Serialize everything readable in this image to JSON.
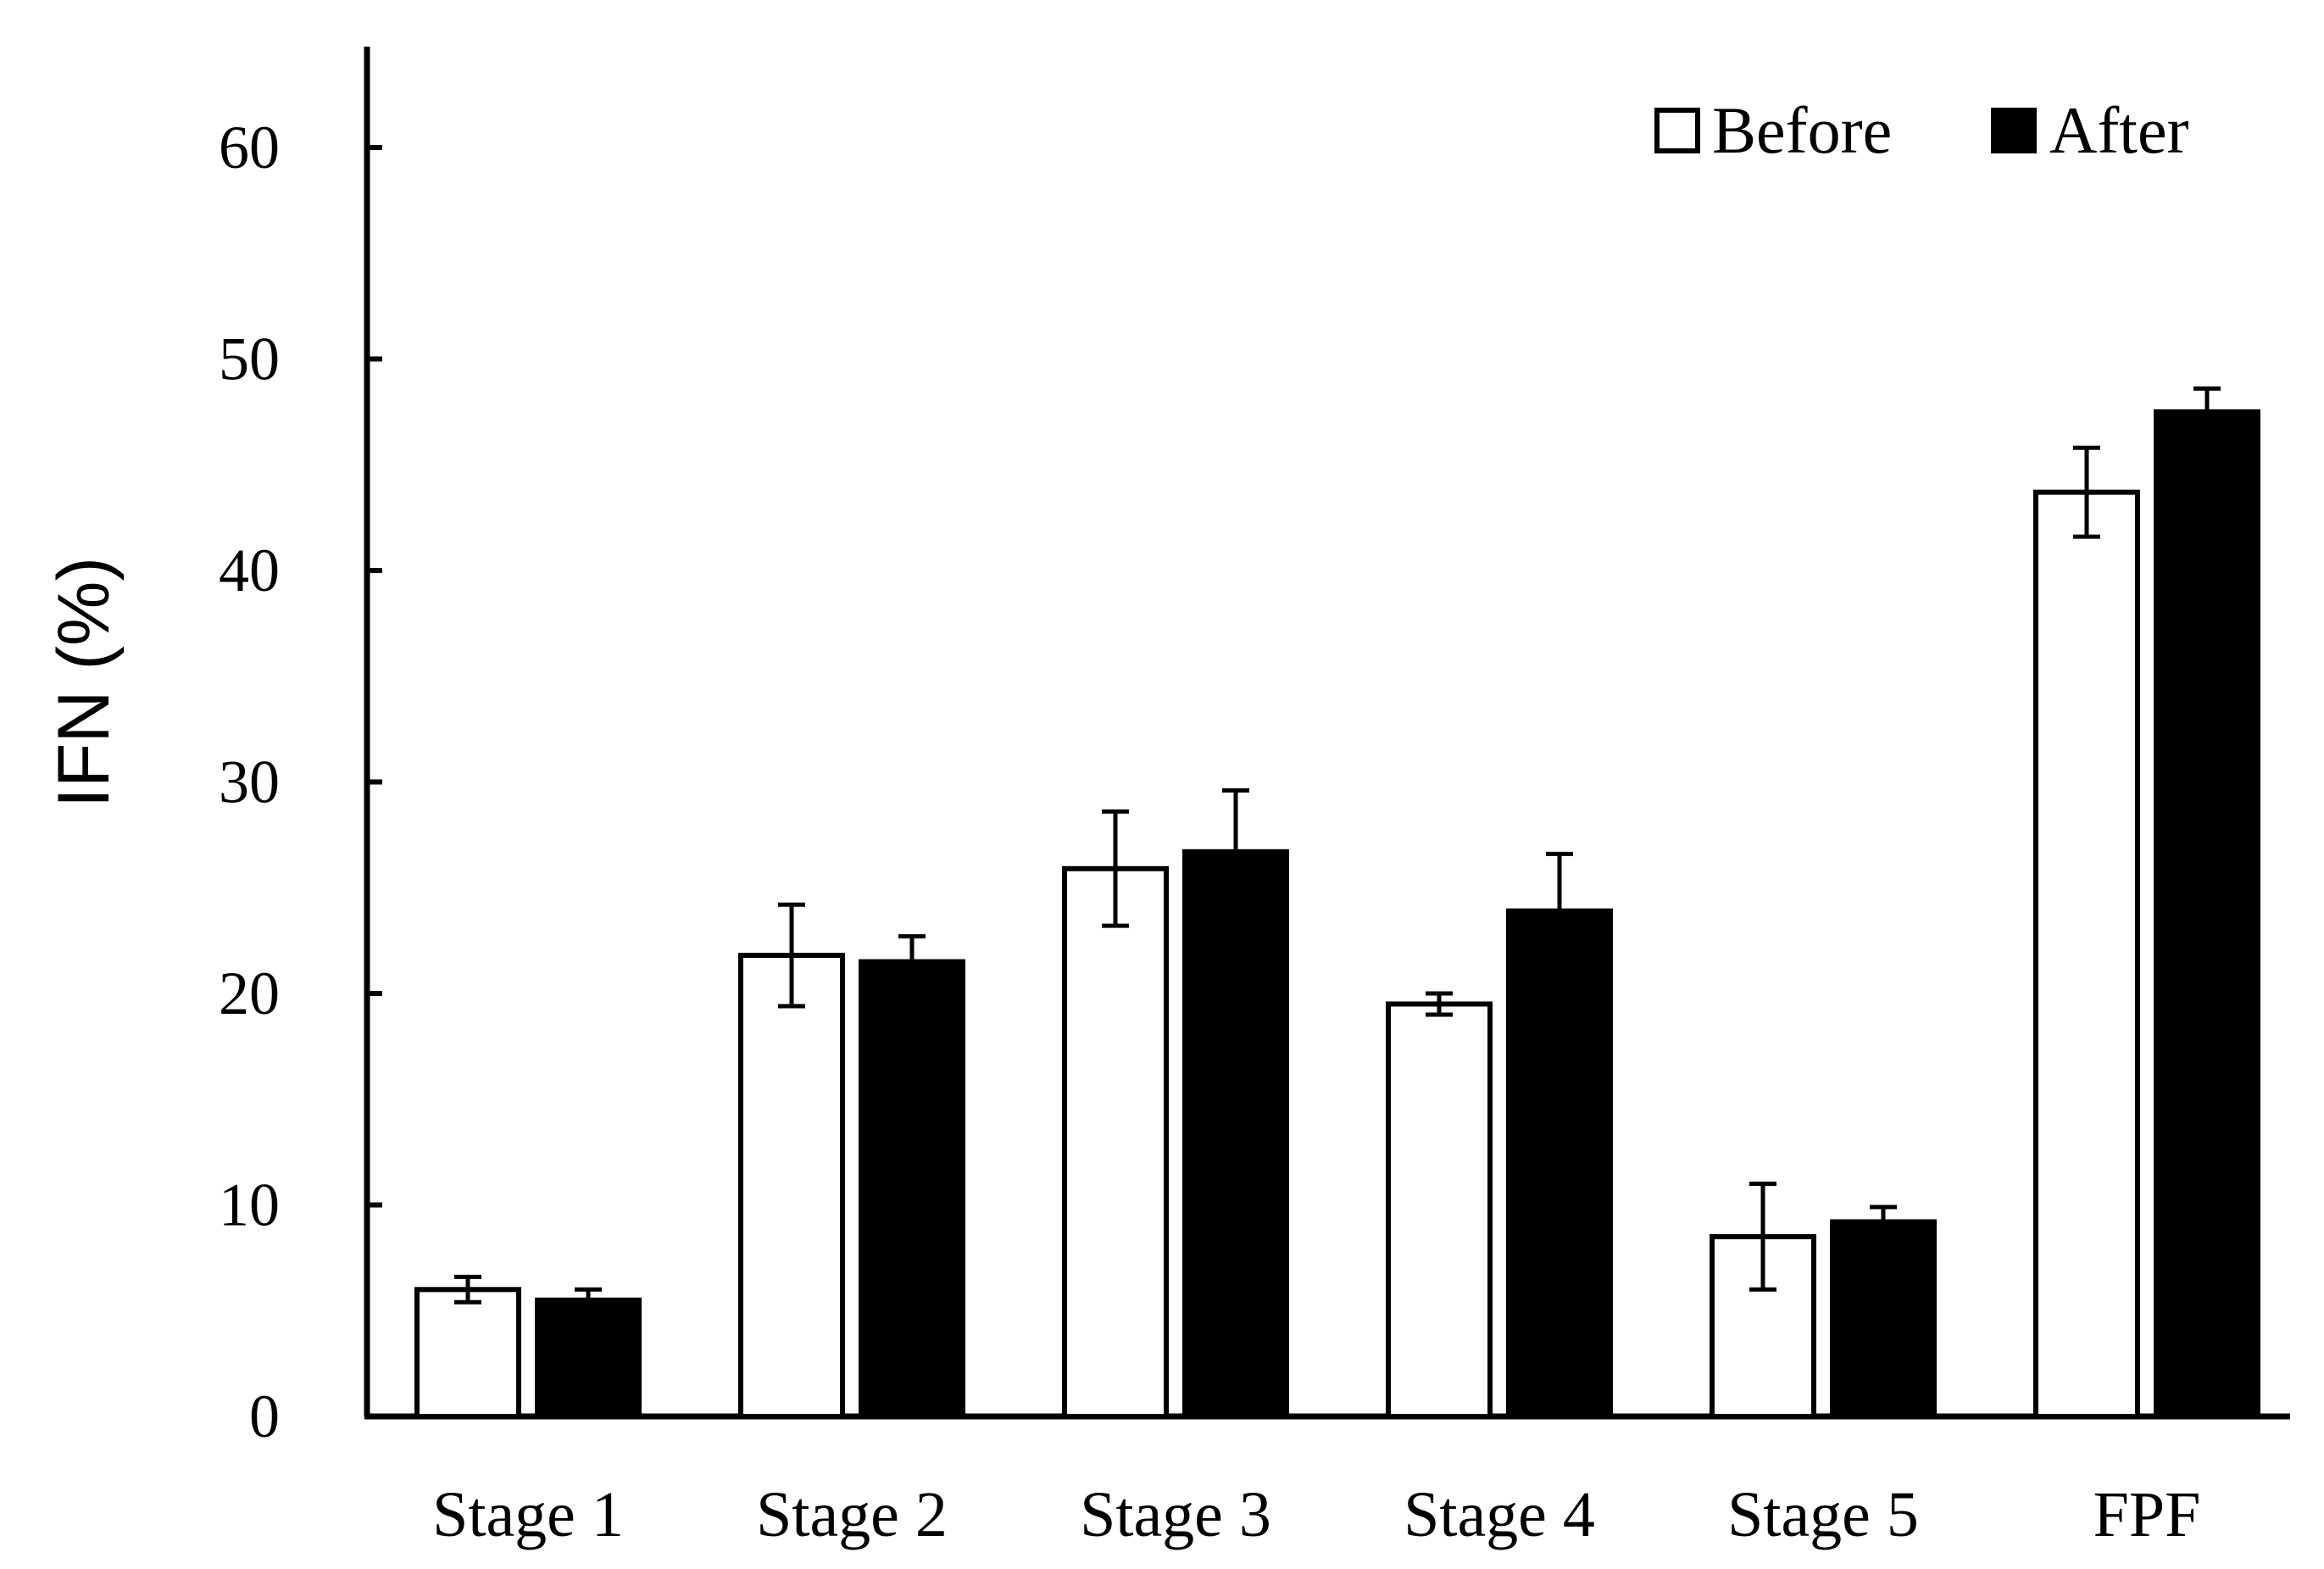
{
  "chart_data": {
    "type": "bar",
    "title": "",
    "xlabel": "",
    "ylabel": "IFN (%)",
    "ylim": [
      0,
      65
    ],
    "yticks": [
      0,
      10,
      20,
      30,
      40,
      50,
      60
    ],
    "grid": false,
    "legend_position": "top-right",
    "categories": [
      "Stage 1",
      "Stage 2",
      "Stage 3",
      "Stage 4",
      "Stage 5",
      "FPF"
    ],
    "series": [
      {
        "name": "Before",
        "fill": "#ffffff",
        "stroke": "#000000",
        "values": [
          6.0,
          21.8,
          25.9,
          19.5,
          8.5,
          43.7
        ],
        "errors": [
          0.6,
          2.4,
          2.7,
          0.5,
          2.5,
          2.1
        ]
      },
      {
        "name": "After",
        "fill": "#000000",
        "stroke": "#000000",
        "values": [
          5.5,
          21.5,
          26.7,
          23.9,
          9.2,
          47.5
        ],
        "errors": [
          0.5,
          1.2,
          2.9,
          2.7,
          0.7,
          1.1
        ]
      }
    ]
  }
}
